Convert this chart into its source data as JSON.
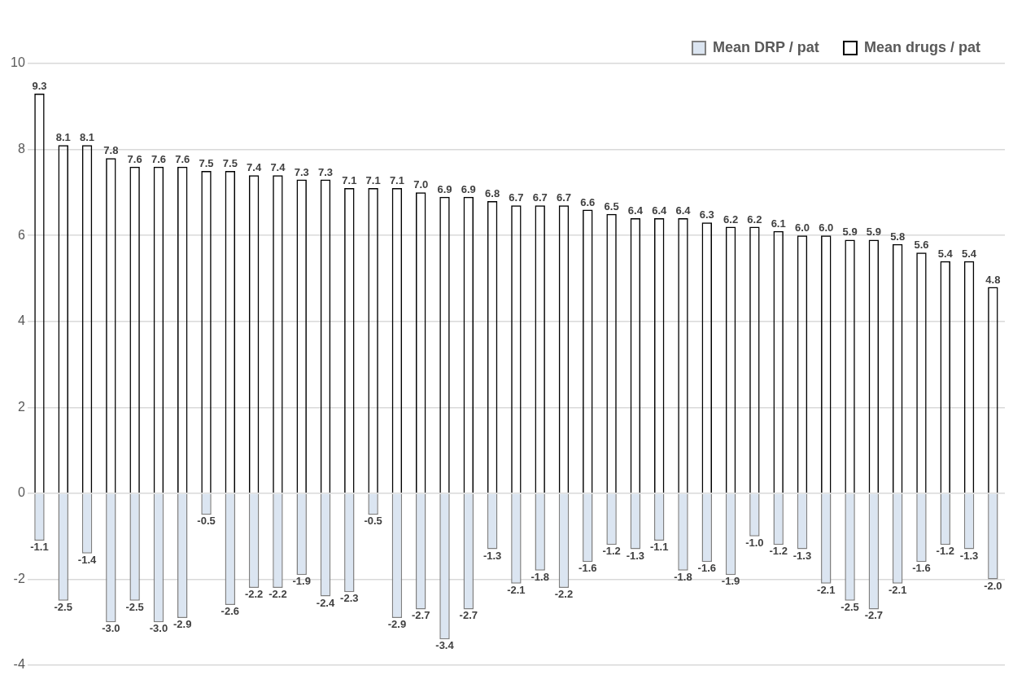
{
  "chart_data": {
    "type": "bar",
    "stacked": true,
    "categories": [
      null,
      null,
      null,
      null,
      null,
      null,
      null,
      null,
      null,
      null,
      null,
      null,
      null,
      null,
      null,
      null,
      null,
      null,
      null,
      null,
      null,
      null,
      null,
      null,
      null,
      null,
      null,
      null,
      null,
      null,
      null,
      null,
      null,
      null,
      null,
      null,
      null,
      null,
      null,
      null,
      null
    ],
    "series": [
      {
        "name": "Mean DRP / pat",
        "color": "#dbe5f1",
        "values": [
          -1.1,
          -2.5,
          -1.4,
          -3.0,
          -2.5,
          -3.0,
          -2.9,
          -0.5,
          -2.6,
          -2.2,
          -2.2,
          -1.9,
          -2.4,
          -2.3,
          -0.5,
          -2.9,
          -2.7,
          -3.4,
          -2.7,
          -1.3,
          -2.1,
          -1.8,
          -2.2,
          -1.6,
          -1.2,
          -1.3,
          -1.1,
          -1.8,
          -1.6,
          -1.9,
          -1.0,
          -1.2,
          -1.3,
          -2.1,
          -2.5,
          -2.7,
          -2.1,
          -1.6,
          -1.2,
          -1.3,
          -2.0
        ],
        "value_labels": [
          "-1.1",
          "-2.5",
          "-1.4",
          "-3.0",
          "-2.5",
          "-3.0",
          "-2.9",
          "-0.5",
          "-2.6",
          "-2.2",
          "-2.2",
          "-1.9",
          "-2.4",
          "-2.3",
          "-0.5",
          "-2.9",
          "-2.7",
          "-3.4",
          "-2.7",
          "-1.3",
          "-2.1",
          "-1.8",
          "-2.2",
          "-1.6",
          "-1.2",
          "-1.3",
          "-1.1",
          "-1.8",
          "-1.6",
          "-1.9",
          "-1.0",
          "-1.2",
          "-1.3",
          "-2.1",
          "-2.5",
          "-2.7",
          "-2.1",
          "-1.6",
          "-1.2",
          "-1.3",
          "-2.0"
        ]
      },
      {
        "name": "Mean drugs / pat",
        "color": "#000000",
        "values": [
          9.3,
          8.1,
          8.1,
          7.8,
          7.6,
          7.6,
          7.6,
          7.5,
          7.5,
          7.4,
          7.4,
          7.3,
          7.3,
          7.1,
          7.1,
          7.1,
          7.0,
          6.9,
          6.9,
          6.8,
          6.7,
          6.7,
          6.7,
          6.6,
          6.5,
          6.4,
          6.4,
          6.4,
          6.3,
          6.2,
          6.2,
          6.1,
          6.0,
          6.0,
          5.9,
          5.9,
          5.8,
          5.6,
          5.4,
          5.4,
          4.8
        ],
        "value_labels": [
          "9.3",
          "8.1",
          "8.1",
          "7.8",
          "7.6",
          "7.6",
          "7.6",
          "7.5",
          "7.5",
          "7.4",
          "7.4",
          "7.3",
          "7.3",
          "7.1",
          "7.1",
          "7.1",
          "7.0",
          "6.9",
          "6.9",
          "6.8",
          "6.7",
          "6.7",
          "6.7",
          "6.6",
          "6.5",
          "6.4",
          "6.4",
          "6.4",
          "6.3",
          "6.2",
          "6.2",
          "6.1",
          "6.0",
          "6.0",
          "5.9",
          "5.9",
          "5.8",
          "5.6",
          "5.4",
          "5.4",
          "4.8"
        ]
      }
    ],
    "ylim": [
      -4,
      10
    ],
    "yticks": [
      -4,
      -2,
      0,
      2,
      4,
      6,
      8,
      10
    ],
    "grid": "y",
    "legend": "top right",
    "tick_labels": "y"
  }
}
